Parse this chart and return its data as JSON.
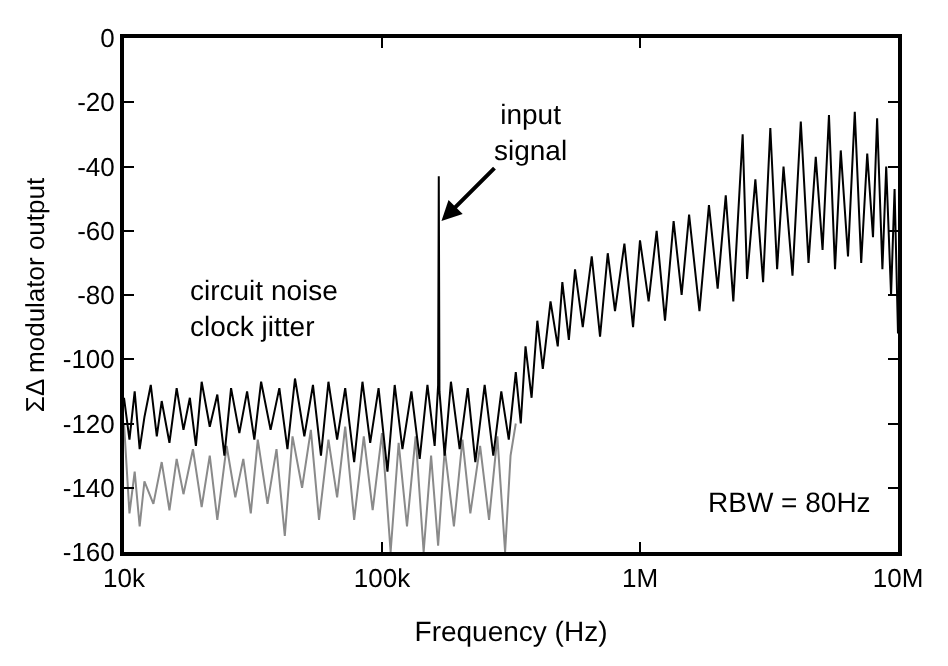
{
  "chart_data": {
    "type": "line",
    "xlabel": "Frequency (Hz)",
    "ylabel": "ΣΔ modulator output",
    "log": "x",
    "marker": "none",
    "line_style": "solid",
    "xlim": [
      10000,
      10000000
    ],
    "xticks": [
      {
        "value": 10000,
        "label": "10k"
      },
      {
        "value": 100000,
        "label": "100k"
      },
      {
        "value": 1000000,
        "label": "1M"
      },
      {
        "value": 10000000,
        "label": "10M"
      }
    ],
    "ylim": [
      -160,
      0
    ],
    "yticks": [
      0,
      -20,
      -40,
      -60,
      -80,
      -100,
      -120,
      -140,
      -160
    ],
    "annotations": [
      {
        "text": "input\nsignal",
        "x": 170000,
        "y": -57
      },
      "circuit noise\nclock jitter",
      "RBW = 80Hz"
    ],
    "series": [
      {
        "color": "#8a8a8a",
        "x": [
          10000,
          10500,
          11000,
          11500,
          12000,
          13000,
          14000,
          15000,
          16000,
          17000,
          18500,
          20000,
          21500,
          23000,
          25000,
          27000,
          29000,
          31000,
          33000,
          36000,
          39000,
          42000,
          45000,
          49000,
          53000,
          57000,
          62000,
          67000,
          72000,
          78000,
          85000,
          92000,
          100000,
          108000,
          116000,
          125000,
          135000,
          145000,
          155000,
          165000,
          175000,
          190000,
          205000,
          220000,
          240000,
          260000,
          280000,
          300000,
          315000,
          330000
        ],
        "values": [
          -120,
          -148,
          -135,
          -152,
          -138,
          -145,
          -132,
          -147,
          -131,
          -142,
          -128,
          -146,
          -130,
          -150,
          -127,
          -143,
          -131,
          -148,
          -125,
          -145,
          -128,
          -155,
          -124,
          -140,
          -122,
          -150,
          -125,
          -143,
          -121,
          -150,
          -124,
          -147,
          -123,
          -160,
          -126,
          -152,
          -124,
          -160,
          -130,
          -158,
          -128,
          -152,
          -125,
          -148,
          -127,
          -150,
          -124,
          -160,
          -130,
          -120
        ]
      },
      {
        "color": "#000000",
        "x": [
          10000,
          10500,
          11000,
          11500,
          12000,
          12700,
          13400,
          14000,
          15000,
          16000,
          17000,
          18000,
          19000,
          20000,
          21500,
          23000,
          24500,
          26000,
          28000,
          30000,
          32000,
          34000,
          37000,
          40000,
          43000,
          46000,
          50000,
          54000,
          58000,
          62000,
          67000,
          72000,
          78000,
          84000,
          90000,
          97000,
          105000,
          112000,
          120000,
          130000,
          140000,
          150000,
          160000,
          165000,
          166000,
          167000,
          175000,
          185000,
          200000,
          215000,
          230000,
          250000,
          270000,
          290000,
          310000,
          330000,
          345000,
          360000,
          380000,
          400000,
          420000,
          450000,
          480000,
          500000,
          530000,
          560000,
          600000,
          650000,
          700000,
          750000,
          800000,
          870000,
          940000,
          1000000,
          1080000,
          1160000,
          1250000,
          1350000,
          1450000,
          1550000,
          1700000,
          1850000,
          2000000,
          2150000,
          2300000,
          2500000,
          2600000,
          2800000,
          3000000,
          3200000,
          3400000,
          3600000,
          3900000,
          4200000,
          4500000,
          4800000,
          5100000,
          5400000,
          5700000,
          6000000,
          6400000,
          6800000,
          7200000,
          7600000,
          8000000,
          8300000,
          8700000,
          9000000,
          9400000,
          9700000,
          10000000
        ],
        "values": [
          -112,
          -125,
          -110,
          -128,
          -118,
          -108,
          -124,
          -113,
          -126,
          -109,
          -122,
          -112,
          -127,
          -107,
          -121,
          -111,
          -130,
          -109,
          -123,
          -110,
          -125,
          -107,
          -122,
          -109,
          -128,
          -106,
          -124,
          -108,
          -130,
          -107,
          -125,
          -109,
          -132,
          -107,
          -126,
          -109,
          -135,
          -108,
          -128,
          -110,
          -131,
          -108,
          -127,
          -108,
          -43,
          -110,
          -130,
          -107,
          -128,
          -109,
          -132,
          -108,
          -130,
          -110,
          -125,
          -104,
          -120,
          -96,
          -112,
          -88,
          -103,
          -82,
          -96,
          -76,
          -94,
          -72,
          -90,
          -68,
          -93,
          -67,
          -85,
          -64,
          -90,
          -63,
          -82,
          -60,
          -88,
          -57,
          -80,
          -55,
          -85,
          -52,
          -78,
          -49,
          -82,
          -30,
          -75,
          -44,
          -76,
          -28,
          -72,
          -40,
          -74,
          -26,
          -70,
          -37,
          -66,
          -24,
          -72,
          -35,
          -68,
          -23,
          -70,
          -36,
          -62,
          -25,
          -72,
          -40,
          -80,
          -47,
          -92
        ]
      }
    ]
  }
}
